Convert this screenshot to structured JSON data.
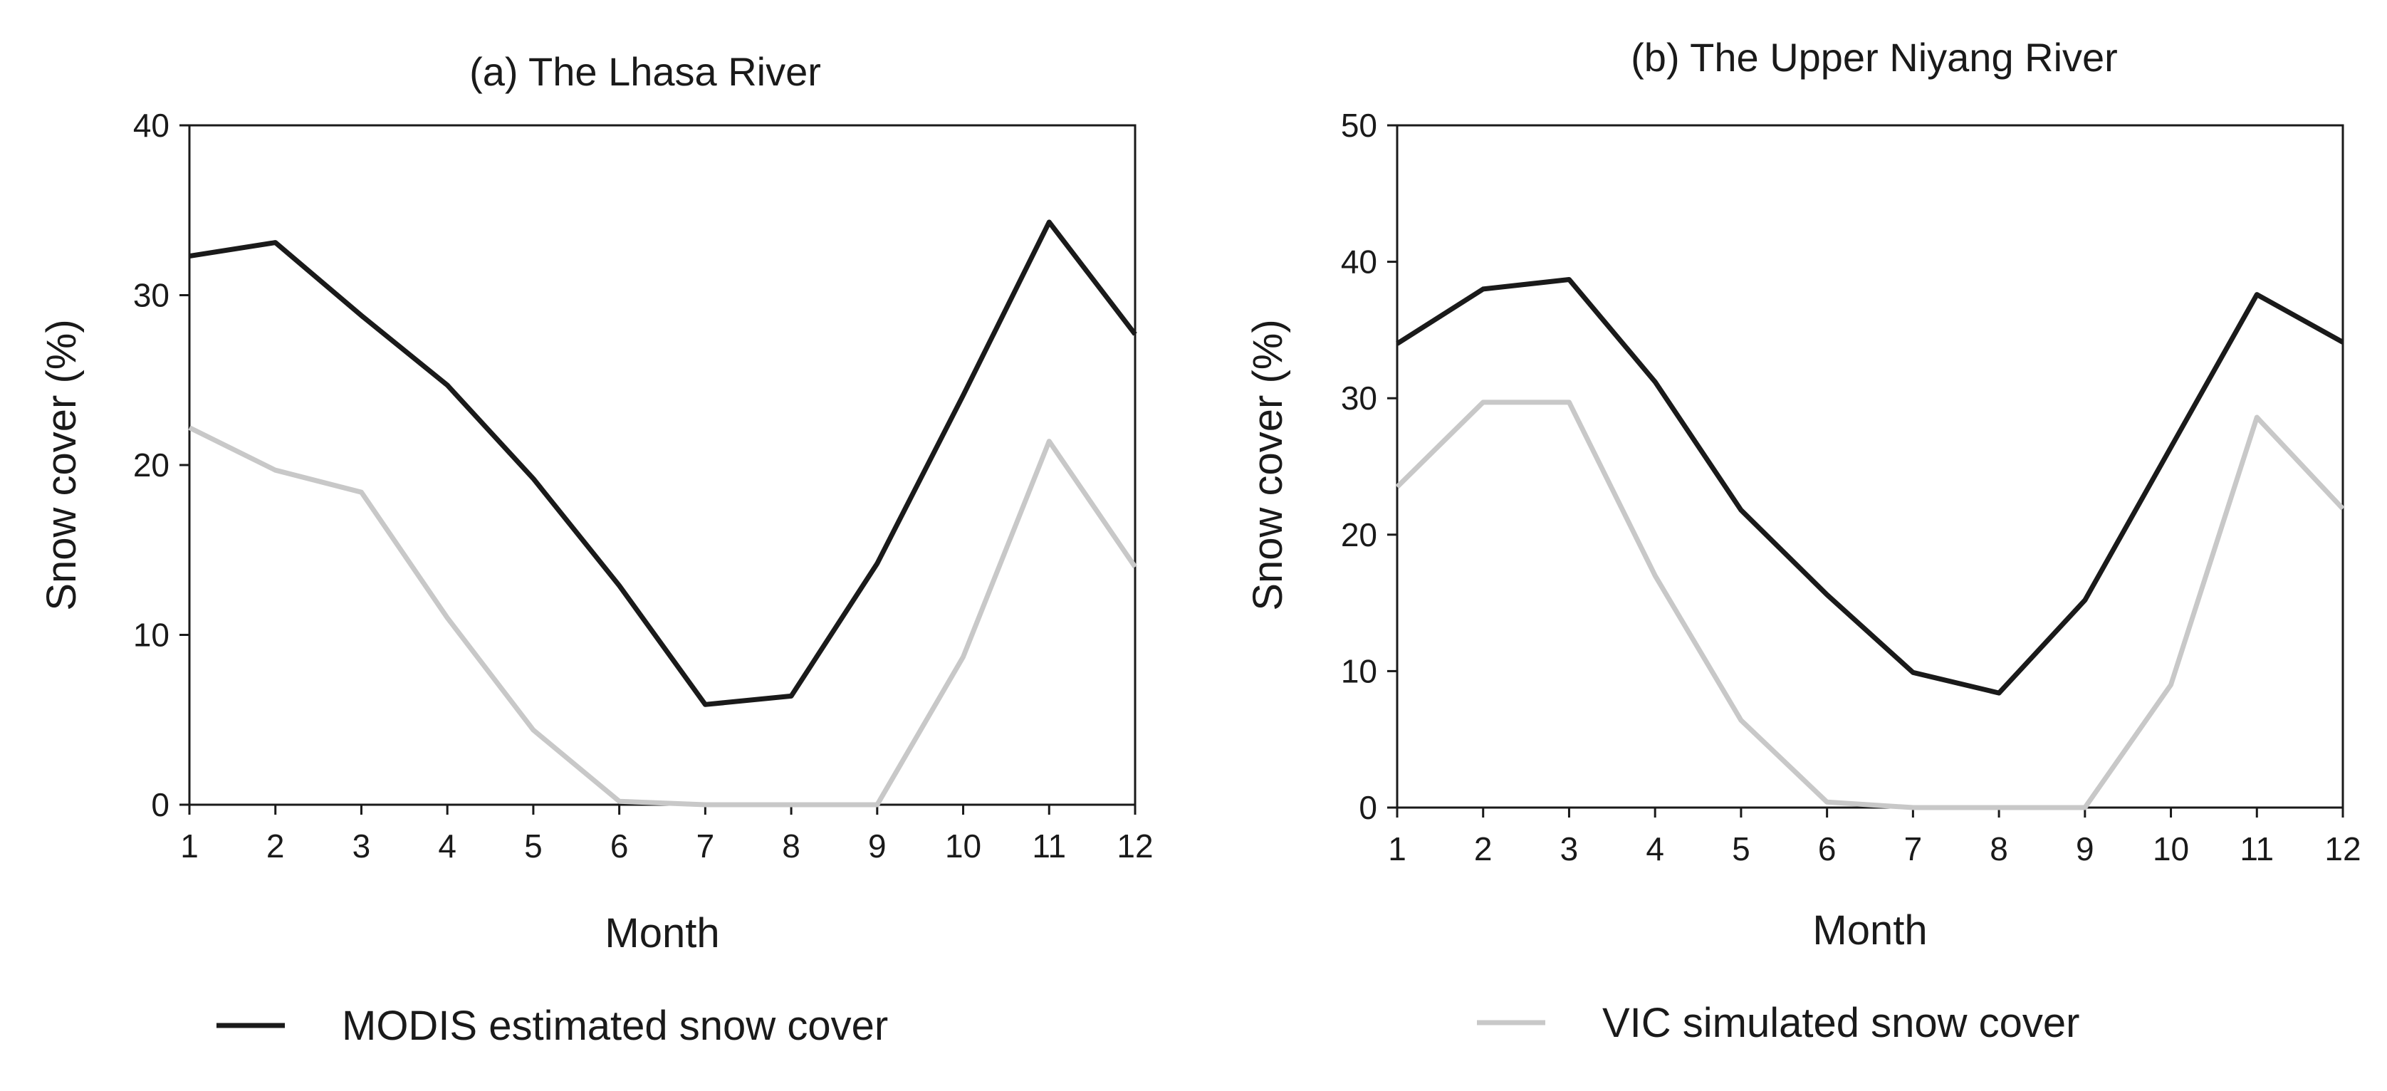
{
  "chart_data": [
    {
      "type": "line",
      "title": "(a) The Lhasa River",
      "xlabel": "Month",
      "ylabel": "Snow cover (%)",
      "x": [
        1,
        2,
        3,
        4,
        5,
        6,
        7,
        8,
        9,
        10,
        11,
        12
      ],
      "xlim": [
        1,
        12
      ],
      "ylim": [
        0,
        40
      ],
      "yticks": [
        0,
        10,
        20,
        30,
        40
      ],
      "grid": false,
      "series": [
        {
          "name": "MODIS estimated snow cover",
          "color": "#1a1a1a",
          "values": [
            32.3,
            33.1,
            28.8,
            24.7,
            19.2,
            12.9,
            5.9,
            6.4,
            14.2,
            24.1,
            34.3,
            27.7
          ]
        },
        {
          "name": "VIC simulated snow cover",
          "color": "#c8c8c8",
          "values": [
            22.2,
            19.7,
            18.4,
            11.0,
            4.4,
            0.2,
            0.0,
            0.0,
            0.0,
            8.7,
            21.4,
            14.0
          ]
        }
      ]
    },
    {
      "type": "line",
      "title": "(b) The Upper Niyang River",
      "xlabel": "Month",
      "ylabel": "Snow cover (%)",
      "x": [
        1,
        2,
        3,
        4,
        5,
        6,
        7,
        8,
        9,
        10,
        11,
        12
      ],
      "xlim": [
        1,
        12
      ],
      "ylim": [
        0,
        50
      ],
      "yticks": [
        0,
        10,
        20,
        30,
        40,
        50
      ],
      "grid": false,
      "series": [
        {
          "name": "MODIS estimated snow cover",
          "color": "#1a1a1a",
          "values": [
            34.0,
            38.0,
            38.7,
            31.2,
            21.8,
            15.6,
            9.9,
            8.4,
            15.2,
            26.4,
            37.6,
            34.1
          ]
        },
        {
          "name": "VIC simulated snow cover",
          "color": "#c8c8c8",
          "values": [
            23.5,
            29.7,
            29.7,
            17.0,
            6.4,
            0.4,
            0.0,
            0.0,
            0.0,
            9.0,
            28.6,
            21.9
          ]
        }
      ]
    }
  ],
  "legend": {
    "placement": "bottom",
    "items": [
      {
        "label": "MODIS estimated snow cover",
        "color": "#1a1a1a"
      },
      {
        "label": "VIC simulated snow cover",
        "color": "#c8c8c8"
      }
    ]
  }
}
